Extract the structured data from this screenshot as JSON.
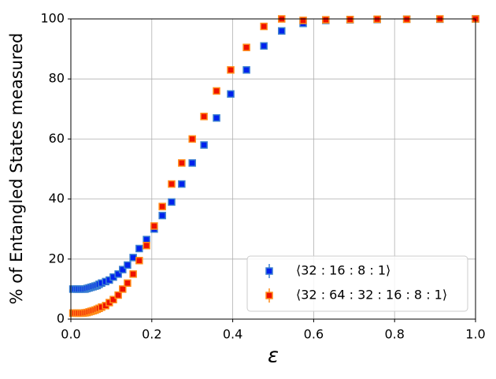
{
  "chart_data": {
    "type": "scatter",
    "xlabel": "ε",
    "ylabel": "% of Entangled States measured",
    "xlim": [
      0,
      1
    ],
    "ylim": [
      0,
      100
    ],
    "xticks": [
      {
        "value": 0,
        "label": "0.0"
      },
      0.2,
      0.4,
      0.6,
      0.8,
      {
        "value": 1,
        "label": "1.0"
      }
    ],
    "yticks": [
      0,
      20,
      40,
      60,
      80,
      100
    ],
    "grid": true,
    "legend": "lower right",
    "x": [
      0.005,
      0.01,
      0.015,
      0.02,
      0.025,
      0.03,
      0.035,
      0.04,
      0.045,
      0.05,
      0.055,
      0.06,
      0.065,
      0.07,
      0.076,
      0.086,
      0.095,
      0.105,
      0.117,
      0.128,
      0.14,
      0.154,
      0.169,
      0.187,
      0.206,
      0.226,
      0.249,
      0.274,
      0.3,
      0.329,
      0.36,
      0.395,
      0.434,
      0.477,
      0.521,
      0.574,
      0.63,
      0.69,
      0.757,
      0.83,
      0.912,
      1.0
    ],
    "series": [
      {
        "name": "⟨32 : 16 : 8 : 1⟩",
        "color": "#0022ee",
        "edgecolor": "#3a7fd0",
        "values": [
          10,
          10,
          10,
          10,
          10,
          10,
          10,
          10.2,
          10.4,
          10.6,
          10.8,
          11,
          11.2,
          11.6,
          12,
          12.5,
          13,
          14,
          15,
          16.5,
          18,
          20.5,
          23.5,
          26.5,
          30,
          34.5,
          39,
          45,
          52,
          58,
          67,
          75,
          83,
          91,
          96,
          98.5,
          99.5,
          99.7,
          99.8,
          99.9,
          99.9,
          100
        ]
      },
      {
        "name": "⟨32 : 64 : 32 : 16 : 8 : 1⟩",
        "color": "#ee1100",
        "edgecolor": "#ff8c1a",
        "values": [
          2,
          2,
          2,
          2,
          2,
          2,
          2.1,
          2.2,
          2.4,
          2.6,
          2.8,
          3,
          3.3,
          3.6,
          4,
          4.5,
          5.5,
          6.5,
          8,
          10,
          12,
          15,
          19.5,
          24.5,
          31,
          37.5,
          45,
          52,
          60,
          67.5,
          76,
          83,
          90.5,
          97.5,
          100,
          99.5,
          99.7,
          99.8,
          99.9,
          99.9,
          100,
          100
        ]
      }
    ]
  }
}
